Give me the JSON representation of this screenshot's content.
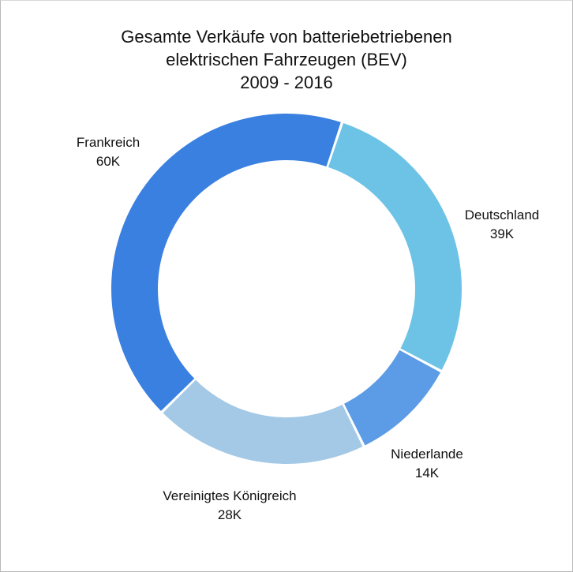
{
  "chart_data": {
    "type": "pie",
    "style": "donut",
    "title_lines": [
      "Gesamte Verkäufe von batteriebetriebenen",
      "elektrischen Fahrzeugen (BEV)",
      "2009 - 2016"
    ],
    "slices": [
      {
        "name": "Deutschland",
        "value": 39,
        "value_label": "39K",
        "color": "#6cc3e6"
      },
      {
        "name": "Niederlande",
        "value": 14,
        "value_label": "14K",
        "color": "#5c9be6"
      },
      {
        "name": "Vereinigtes Königreich",
        "value": 28,
        "value_label": "28K",
        "color": "#a3c9e6"
      },
      {
        "name": "Frankreich",
        "value": 60,
        "value_label": "60K",
        "color": "#3a80e0"
      }
    ]
  }
}
